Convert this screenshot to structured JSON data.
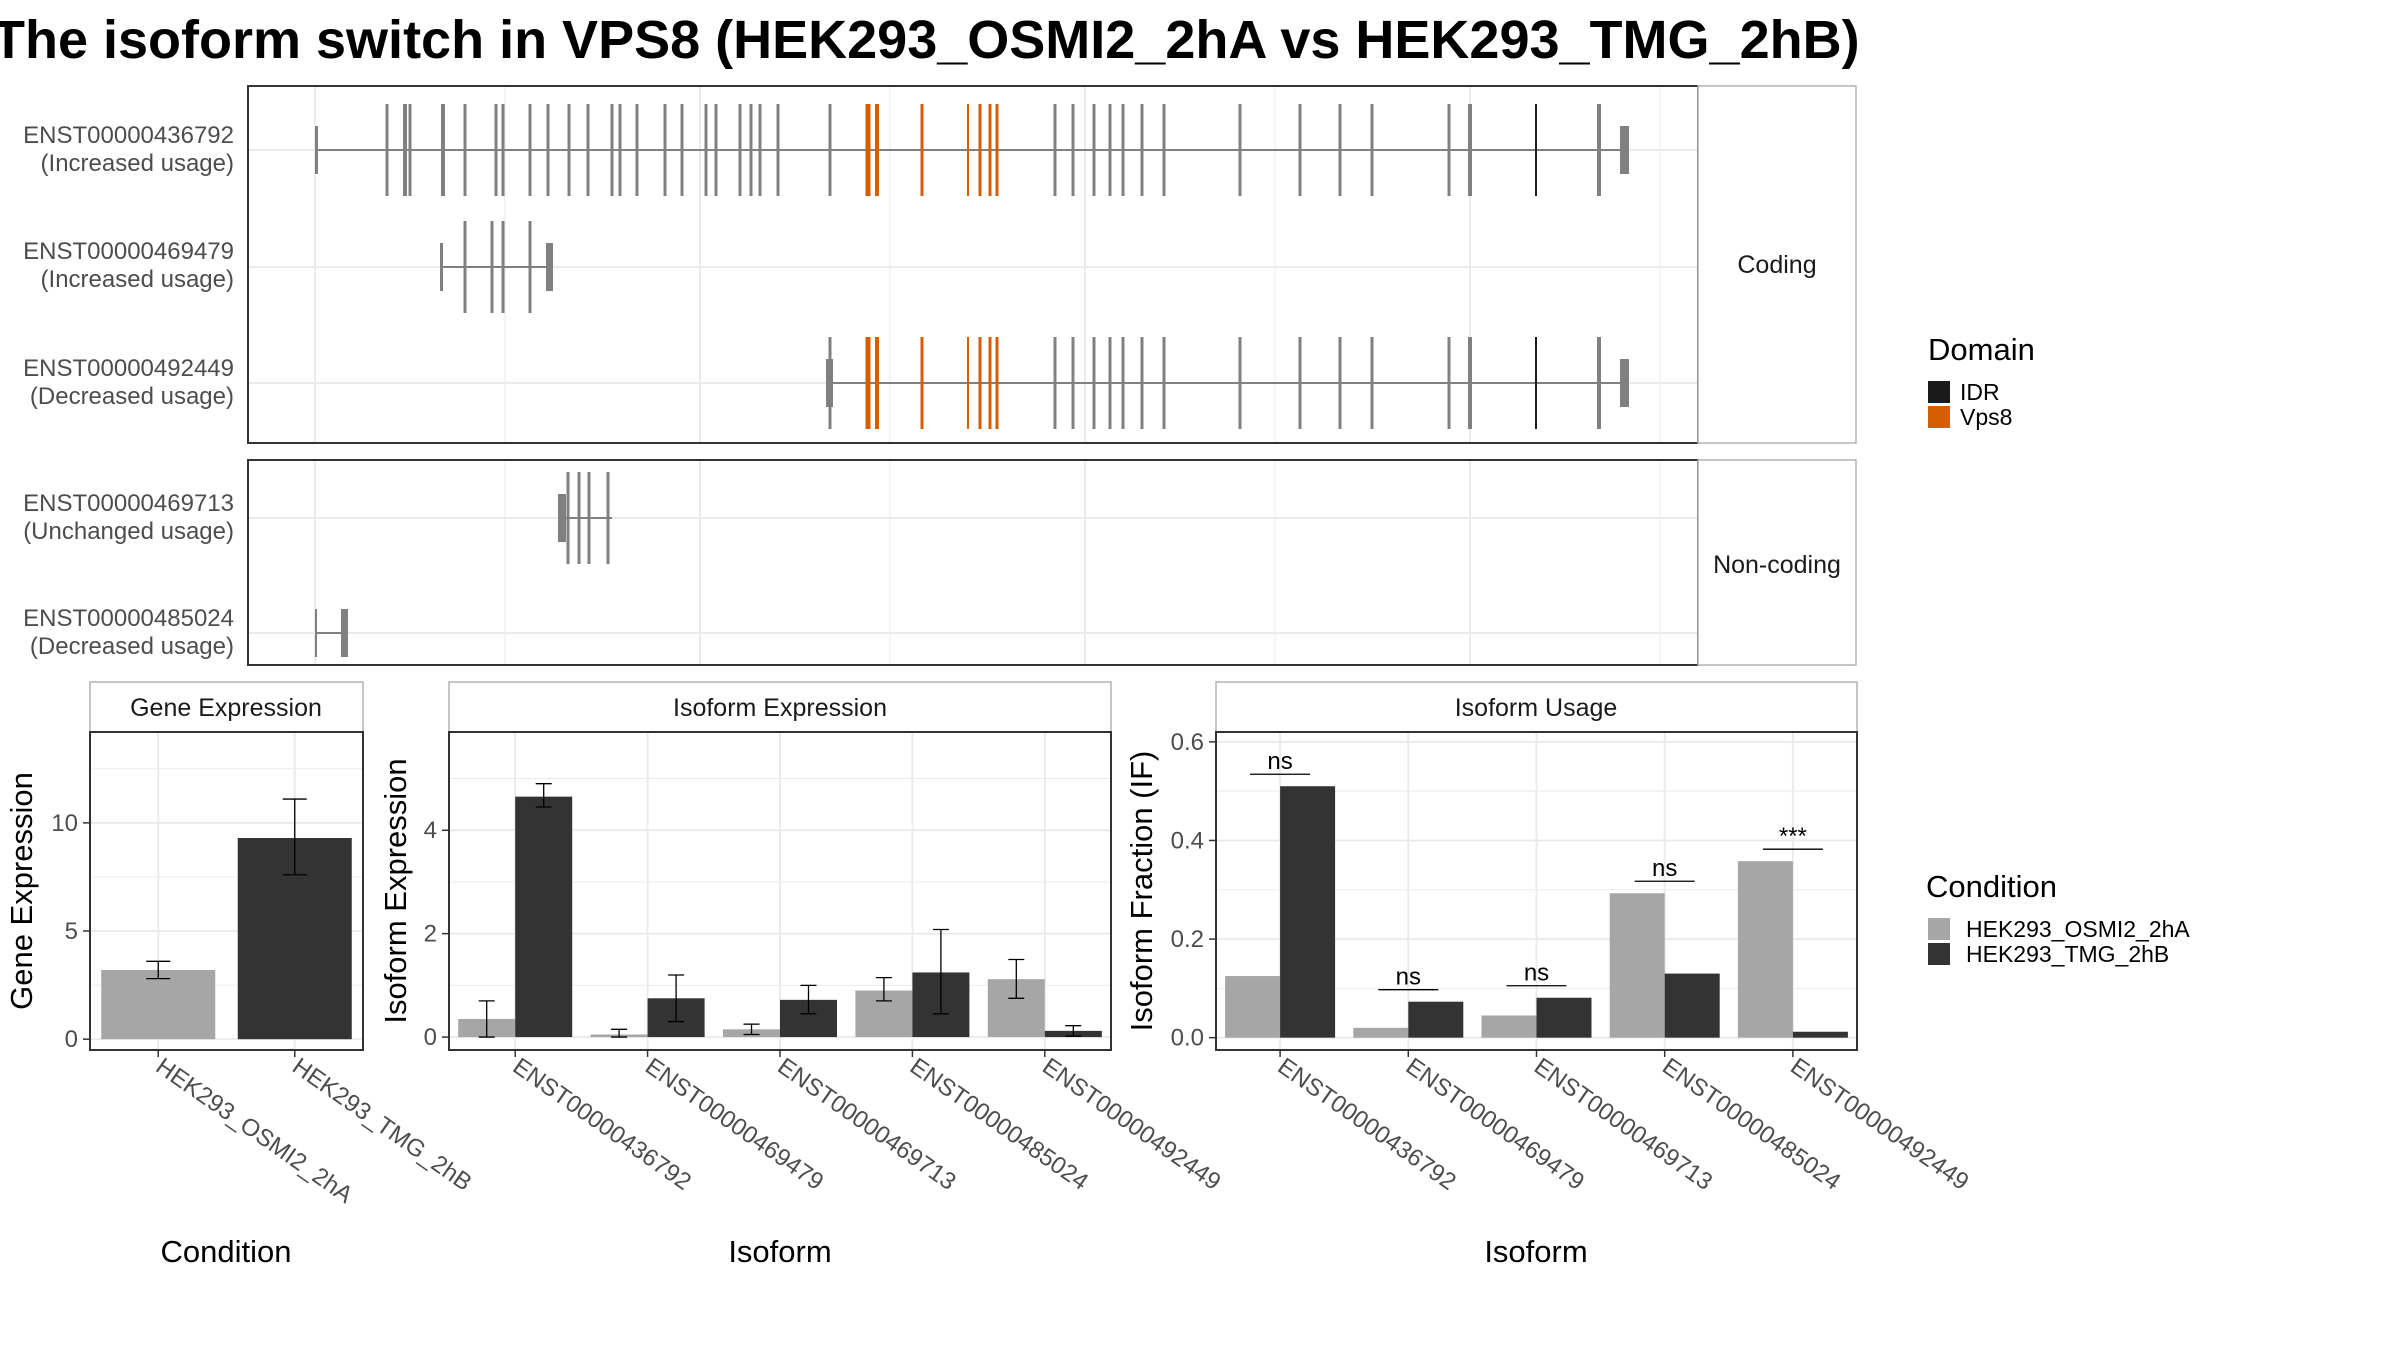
{
  "figure": {
    "title": "The isoform switch in VPS8 (HEK293_OSMI2_2hA vs HEK293_TMG_2hB)"
  },
  "transcript_panel": {
    "coding_label": "Coding",
    "noncoding_label": "Non-coding",
    "transcripts": [
      {
        "id": "ENST00000436792",
        "usage": "(Increased usage)",
        "group": "coding"
      },
      {
        "id": "ENST00000469479",
        "usage": "(Increased usage)",
        "group": "coding"
      },
      {
        "id": "ENST00000492449",
        "usage": "(Decreased usage)",
        "group": "coding"
      },
      {
        "id": "ENST00000469713",
        "usage": "(Unchanged usage)",
        "group": "noncoding"
      },
      {
        "id": "ENST00000485024",
        "usage": "(Decreased usage)",
        "group": "noncoding"
      }
    ],
    "domain_legend": {
      "title": "Domain",
      "items": [
        {
          "name": "IDR",
          "color": "#1a1a1a"
        },
        {
          "name": "Vps8",
          "color": "#d55e00"
        }
      ]
    }
  },
  "condition_legend": {
    "title": "Condition",
    "items": [
      {
        "name": "HEK293_OSMI2_2hA",
        "color": "#a6a6a6"
      },
      {
        "name": "HEK293_TMG_2hB",
        "color": "#333333"
      }
    ]
  },
  "colors": {
    "exon": "#808080",
    "intron": "#808080",
    "idr": "#1a1a1a",
    "vps8": "#d55e00",
    "grid": "#ebebeb",
    "panel_border": "#333333",
    "strip_border": "#b3b3b3"
  },
  "chart_data": [
    {
      "type": "bar",
      "strip": "Gene Expression",
      "xlabel": "Condition",
      "ylabel": "Gene Expression",
      "categories": [
        "HEK293_OSMI2_2hA",
        "HEK293_TMG_2hB"
      ],
      "values": [
        3.2,
        9.3
      ],
      "error_low": [
        2.8,
        7.6
      ],
      "error_high": [
        3.6,
        11.1
      ],
      "ylim": [
        -0.5,
        14.2
      ],
      "yticks": [
        0,
        5,
        10
      ]
    },
    {
      "type": "bar",
      "strip": "Isoform Expression",
      "xlabel": "Isoform",
      "ylabel": "Isoform Expression",
      "categories": [
        "ENST00000436792",
        "ENST00000469479",
        "ENST00000469713",
        "ENST00000485024",
        "ENST00000492449"
      ],
      "series": [
        {
          "name": "HEK293_OSMI2_2hA",
          "values": [
            0.35,
            0.05,
            0.15,
            0.9,
            1.12
          ],
          "error_low": [
            0.0,
            0.0,
            0.05,
            0.7,
            0.75
          ],
          "error_high": [
            0.7,
            0.15,
            0.25,
            1.15,
            1.5
          ]
        },
        {
          "name": "HEK293_TMG_2hB",
          "values": [
            4.65,
            0.75,
            0.72,
            1.25,
            0.12
          ],
          "error_low": [
            4.45,
            0.3,
            0.45,
            0.45,
            0.02
          ],
          "error_high": [
            4.9,
            1.2,
            1.0,
            2.08,
            0.22
          ]
        }
      ],
      "ylim": [
        -0.25,
        5.9
      ],
      "yticks": [
        0,
        2,
        4
      ]
    },
    {
      "type": "bar",
      "strip": "Isoform Usage",
      "xlabel": "Isoform",
      "ylabel": "Isoform Fraction (IF)",
      "categories": [
        "ENST00000436792",
        "ENST00000469479",
        "ENST00000469713",
        "ENST00000485024",
        "ENST00000492449"
      ],
      "series": [
        {
          "name": "HEK293_OSMI2_2hA",
          "values": [
            0.125,
            0.02,
            0.045,
            0.293,
            0.358
          ]
        },
        {
          "name": "HEK293_TMG_2hB",
          "values": [
            0.51,
            0.073,
            0.081,
            0.13,
            0.012
          ]
        }
      ],
      "significance": [
        "ns",
        "ns",
        "ns",
        "ns",
        "***"
      ],
      "ylim": [
        -0.025,
        0.62
      ],
      "yticks": [
        0.0,
        0.2,
        0.4,
        0.6
      ]
    }
  ]
}
